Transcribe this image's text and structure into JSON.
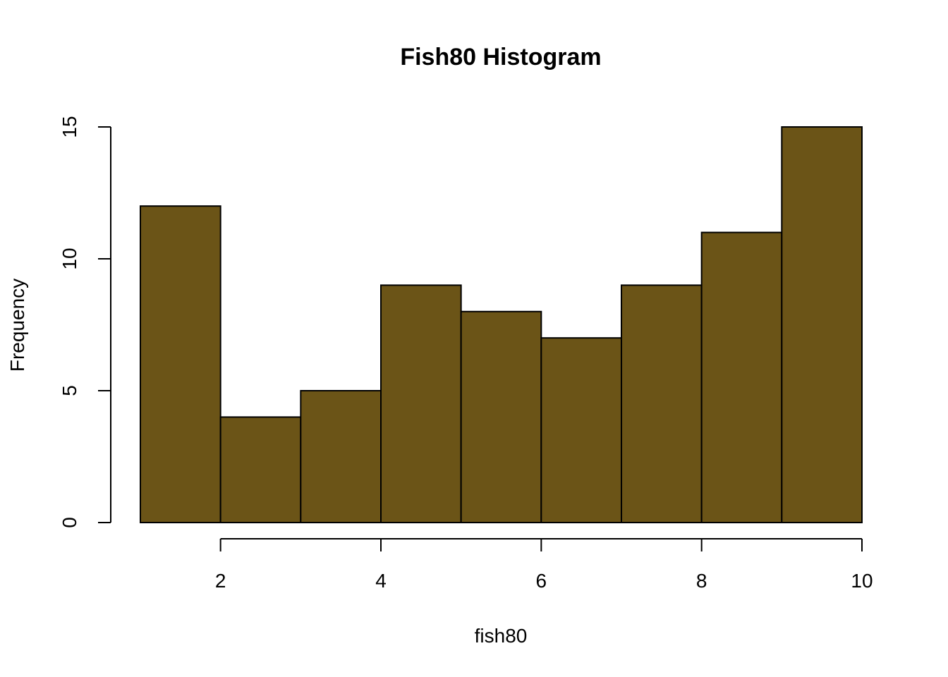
{
  "chart_data": {
    "type": "bar",
    "title": "Fish80 Histogram",
    "xlabel": "fish80",
    "ylabel": "Frequency",
    "bin_edges": [
      1,
      2,
      3,
      4,
      5,
      6,
      7,
      8,
      9,
      10
    ],
    "values": [
      12,
      4,
      5,
      9,
      8,
      7,
      9,
      11,
      15
    ],
    "xticks": [
      2,
      4,
      6,
      8,
      10
    ],
    "xtick_labels": [
      "2",
      "4",
      "6",
      "8",
      "10"
    ],
    "yticks": [
      0,
      5,
      10,
      15
    ],
    "ytick_labels": [
      "0",
      "5",
      "10",
      "15"
    ],
    "xlim": [
      1,
      10
    ],
    "ylim": [
      0,
      15
    ],
    "grid": false,
    "bar_color": "#6b5417"
  }
}
